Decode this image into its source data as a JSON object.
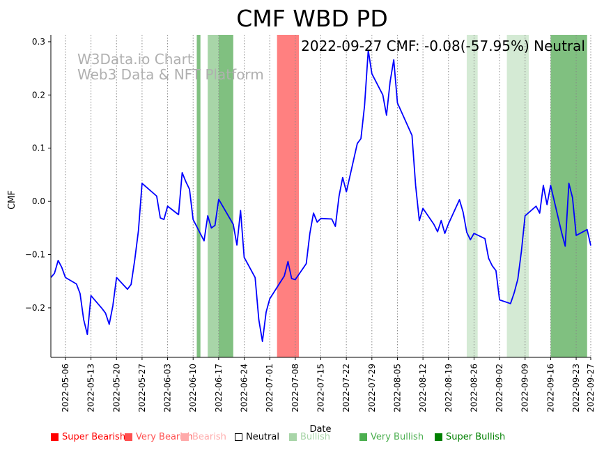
{
  "chart_data": {
    "type": "line",
    "title": "CMF WBD PD",
    "xlabel": "Date",
    "ylabel": "CMF",
    "annotation": "2022-09-27 CMF: -0.08(-57.95%) Neutral",
    "watermark": [
      "W3Data.io Chart",
      "Web3 Data & NFT Platform"
    ],
    "x_range": [
      "2022-05-02",
      "2022-09-27"
    ],
    "ylim": [
      -0.293,
      0.313
    ],
    "yticks": [
      0.3,
      0.2,
      0.1,
      0.0,
      -0.1,
      -0.2
    ],
    "ytick_labels": [
      "0.3",
      "0.2",
      "0.1",
      "0.0",
      "−0.1",
      "−0.2"
    ],
    "xticks": [
      "2022-05-06",
      "2022-05-13",
      "2022-05-20",
      "2022-05-27",
      "2022-06-03",
      "2022-06-10",
      "2022-06-17",
      "2022-06-24",
      "2022-07-01",
      "2022-07-08",
      "2022-07-15",
      "2022-07-22",
      "2022-07-29",
      "2022-08-05",
      "2022-08-12",
      "2022-08-19",
      "2022-08-26",
      "2022-09-02",
      "2022-09-09",
      "2022-09-16",
      "2022-09-23",
      "2022-09-27"
    ],
    "grid": "vertical-dotted",
    "series": [
      {
        "name": "CMF",
        "color": "#0000ff",
        "points": [
          [
            "2022-05-02",
            -0.143
          ],
          [
            "2022-05-03",
            -0.135
          ],
          [
            "2022-05-04",
            -0.111
          ],
          [
            "2022-05-05",
            -0.124
          ],
          [
            "2022-05-06",
            -0.143
          ],
          [
            "2022-05-09",
            -0.155
          ],
          [
            "2022-05-10",
            -0.173
          ],
          [
            "2022-05-11",
            -0.222
          ],
          [
            "2022-05-12",
            -0.25
          ],
          [
            "2022-05-13",
            -0.177
          ],
          [
            "2022-05-16",
            -0.201
          ],
          [
            "2022-05-17",
            -0.21
          ],
          [
            "2022-05-18",
            -0.231
          ],
          [
            "2022-05-19",
            -0.196
          ],
          [
            "2022-05-20",
            -0.143
          ],
          [
            "2022-05-23",
            -0.165
          ],
          [
            "2022-05-24",
            -0.156
          ],
          [
            "2022-05-25",
            -0.11
          ],
          [
            "2022-05-26",
            -0.055
          ],
          [
            "2022-05-27",
            0.034
          ],
          [
            "2022-05-31",
            0.01
          ],
          [
            "2022-06-01",
            -0.031
          ],
          [
            "2022-06-02",
            -0.034
          ],
          [
            "2022-06-03",
            -0.009
          ],
          [
            "2022-06-06",
            -0.025
          ],
          [
            "2022-06-07",
            0.054
          ],
          [
            "2022-06-08",
            0.037
          ],
          [
            "2022-06-09",
            0.023
          ],
          [
            "2022-06-10",
            -0.034
          ],
          [
            "2022-06-13",
            -0.074
          ],
          [
            "2022-06-14",
            -0.027
          ],
          [
            "2022-06-15",
            -0.05
          ],
          [
            "2022-06-16",
            -0.045
          ],
          [
            "2022-06-17",
            0.004
          ],
          [
            "2022-06-21",
            -0.043
          ],
          [
            "2022-06-22",
            -0.082
          ],
          [
            "2022-06-23",
            -0.017
          ],
          [
            "2022-06-24",
            -0.105
          ],
          [
            "2022-06-27",
            -0.143
          ],
          [
            "2022-06-28",
            -0.222
          ],
          [
            "2022-06-29",
            -0.263
          ],
          [
            "2022-06-30",
            -0.208
          ],
          [
            "2022-07-01",
            -0.183
          ],
          [
            "2022-07-05",
            -0.14
          ],
          [
            "2022-07-06",
            -0.113
          ],
          [
            "2022-07-07",
            -0.145
          ],
          [
            "2022-07-08",
            -0.147
          ],
          [
            "2022-07-11",
            -0.117
          ],
          [
            "2022-07-12",
            -0.06
          ],
          [
            "2022-07-13",
            -0.022
          ],
          [
            "2022-07-14",
            -0.039
          ],
          [
            "2022-07-15",
            -0.032
          ],
          [
            "2022-07-18",
            -0.033
          ],
          [
            "2022-07-19",
            -0.047
          ],
          [
            "2022-07-20",
            0.01
          ],
          [
            "2022-07-21",
            0.045
          ],
          [
            "2022-07-22",
            0.018
          ],
          [
            "2022-07-25",
            0.109
          ],
          [
            "2022-07-26",
            0.118
          ],
          [
            "2022-07-27",
            0.18
          ],
          [
            "2022-07-28",
            0.284
          ],
          [
            "2022-07-29",
            0.24
          ],
          [
            "2022-08-01",
            0.2
          ],
          [
            "2022-08-02",
            0.162
          ],
          [
            "2022-08-03",
            0.225
          ],
          [
            "2022-08-04",
            0.266
          ],
          [
            "2022-08-05",
            0.185
          ],
          [
            "2022-08-09",
            0.124
          ],
          [
            "2022-08-10",
            0.03
          ],
          [
            "2022-08-11",
            -0.036
          ],
          [
            "2022-08-12",
            -0.013
          ],
          [
            "2022-08-15",
            -0.043
          ],
          [
            "2022-08-16",
            -0.057
          ],
          [
            "2022-08-17",
            -0.036
          ],
          [
            "2022-08-18",
            -0.06
          ],
          [
            "2022-08-19",
            -0.042
          ],
          [
            "2022-08-22",
            0.003
          ],
          [
            "2022-08-23",
            -0.02
          ],
          [
            "2022-08-24",
            -0.058
          ],
          [
            "2022-08-25",
            -0.072
          ],
          [
            "2022-08-26",
            -0.06
          ],
          [
            "2022-08-29",
            -0.07
          ],
          [
            "2022-08-30",
            -0.107
          ],
          [
            "2022-08-31",
            -0.121
          ],
          [
            "2022-09-01",
            -0.13
          ],
          [
            "2022-09-02",
            -0.185
          ],
          [
            "2022-09-05",
            -0.192
          ],
          [
            "2022-09-06",
            -0.172
          ],
          [
            "2022-09-07",
            -0.146
          ],
          [
            "2022-09-08",
            -0.093
          ],
          [
            "2022-09-09",
            -0.027
          ],
          [
            "2022-09-12",
            -0.009
          ],
          [
            "2022-09-13",
            -0.022
          ],
          [
            "2022-09-14",
            0.03
          ],
          [
            "2022-09-15",
            -0.006
          ],
          [
            "2022-09-16",
            0.03
          ],
          [
            "2022-09-19",
            -0.058
          ],
          [
            "2022-09-20",
            -0.084
          ],
          [
            "2022-09-21",
            0.034
          ],
          [
            "2022-09-22",
            0.007
          ],
          [
            "2022-09-23",
            -0.064
          ],
          [
            "2022-09-26",
            -0.053
          ],
          [
            "2022-09-27",
            -0.083
          ]
        ]
      }
    ],
    "bands": [
      {
        "start": "2022-06-11",
        "end": "2022-06-12",
        "category": "Very Bullish"
      },
      {
        "start": "2022-06-14",
        "end": "2022-06-17",
        "category": "Bullish"
      },
      {
        "start": "2022-06-17",
        "end": "2022-06-21",
        "category": "Very Bullish"
      },
      {
        "start": "2022-07-03",
        "end": "2022-07-09",
        "category": "Very Bearish"
      },
      {
        "start": "2022-08-24",
        "end": "2022-08-27",
        "category": "Neutral-Bullish"
      },
      {
        "start": "2022-09-04",
        "end": "2022-09-10",
        "category": "Neutral-Bullish"
      },
      {
        "start": "2022-09-16",
        "end": "2022-09-26",
        "category": "Very Bullish"
      }
    ],
    "band_colors": {
      "Very Bullish": "#80c080",
      "Bullish": "#a8d5a8",
      "Neutral-Bullish": "#d4ead4",
      "Very Bearish": "#ff8080"
    },
    "legend": {
      "placement": "bottom",
      "entries": [
        {
          "label": "Super Bearish",
          "color": "#ff0000",
          "swatch": "#ff0000"
        },
        {
          "label": "Very Bearish",
          "color": "#ff5050",
          "swatch": "#ff5050"
        },
        {
          "label": "Bearish",
          "color": "#ffaaaa",
          "swatch": "#ffaaaa"
        },
        {
          "label": "Neutral",
          "color": "#000000",
          "swatch": "none"
        },
        {
          "label": "Bullish",
          "color": "#a8d5a8",
          "swatch": "#a8d5a8"
        },
        {
          "label": "Very Bullish",
          "color": "#4caf50",
          "swatch": "#4caf50"
        },
        {
          "label": "Super Bullish",
          "color": "#008000",
          "swatch": "#008000"
        }
      ]
    }
  }
}
